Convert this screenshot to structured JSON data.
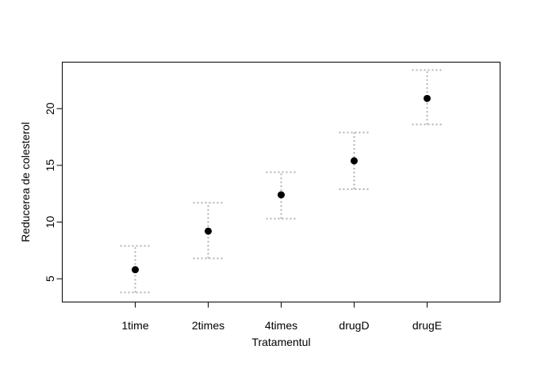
{
  "chart_data": {
    "type": "scatter",
    "categories": [
      "1time",
      "2times",
      "4times",
      "drugD",
      "drugE"
    ],
    "values": [
      5.8,
      9.2,
      12.4,
      15.4,
      20.9
    ],
    "error_low": [
      3.8,
      6.8,
      10.3,
      12.9,
      18.6
    ],
    "error_high": [
      7.9,
      11.7,
      14.4,
      17.9,
      23.4
    ],
    "xlabel": "Tratamentul",
    "ylabel": "Reducerea de colesterol",
    "ylim": [
      2.95,
      24.1
    ],
    "yticks": [
      5,
      10,
      15,
      20
    ],
    "grid": false,
    "legend": "none",
    "colors": {
      "point": "#000000",
      "error_bar": "#b3b3b3"
    }
  }
}
